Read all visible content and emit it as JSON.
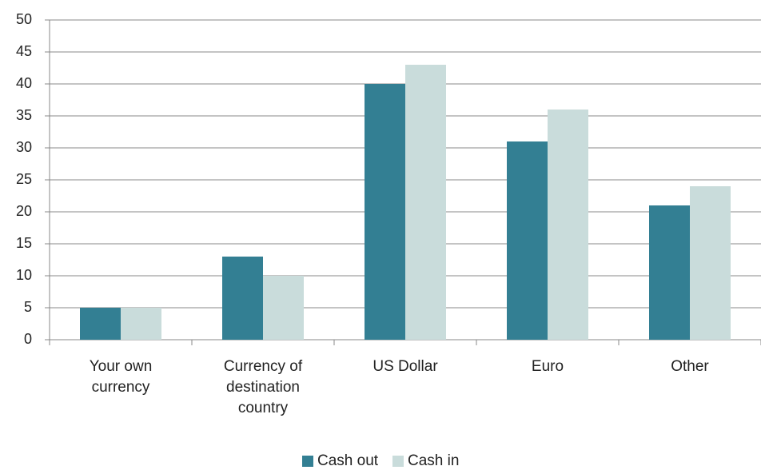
{
  "chart_data": {
    "type": "bar",
    "categories": [
      "Your own currency",
      "Currency of destination country",
      "US Dollar",
      "Euro",
      "Other"
    ],
    "series": [
      {
        "name": "Cash out",
        "color": "#337f93",
        "values": [
          5,
          13,
          40,
          31,
          21
        ]
      },
      {
        "name": "Cash in",
        "color": "#c9dcdb",
        "values": [
          5,
          10,
          43,
          36,
          24
        ]
      }
    ],
    "ylim": [
      0,
      50
    ],
    "yticks": [
      0,
      5,
      10,
      15,
      20,
      25,
      30,
      35,
      40,
      45,
      50
    ],
    "grid": true,
    "legend": "bottom"
  }
}
